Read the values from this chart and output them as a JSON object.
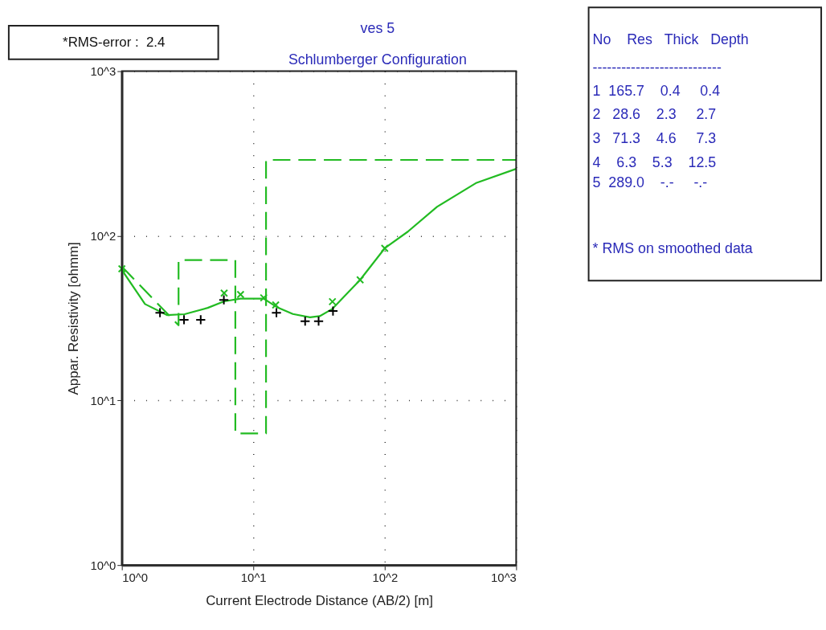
{
  "chart_data": {
    "type": "line",
    "title": "ves 5",
    "subtitle": "Schlumberger Configuration",
    "xlabel": "Current Electrode Distance (AB/2) [m]",
    "ylabel": "Appar. Resistivity [ohmm]",
    "log": "xy",
    "grid": true,
    "xlim": [
      1,
      1000
    ],
    "ylim": [
      1,
      1000
    ],
    "xticks": [
      {
        "value": 1,
        "label": "10^0"
      },
      {
        "value": 10,
        "label": "10^1"
      },
      {
        "value": 100,
        "label": "10^2"
      },
      {
        "value": 1000,
        "label": "10^3"
      }
    ],
    "yticks": [
      {
        "value": 1,
        "label": "10^0"
      },
      {
        "value": 10,
        "label": "10^1"
      },
      {
        "value": 100,
        "label": "10^2"
      },
      {
        "value": 1000,
        "label": "10^3"
      }
    ],
    "series": [
      {
        "type": "line",
        "color": "#22bb22",
        "line_style": "dashed",
        "marker": "none",
        "x": [
          1,
          2.7,
          2.7,
          7.3,
          7.3,
          12.5,
          12.5,
          1000
        ],
        "values": [
          65,
          28.6,
          71.3,
          71.3,
          6.3,
          6.3,
          289,
          289
        ]
      },
      {
        "type": "line",
        "color": "#22bb22",
        "line_style": "solid",
        "marker": "none",
        "x": [
          1,
          1.5,
          2.2,
          3,
          4.5,
          6,
          8,
          12,
          15,
          20,
          27,
          32,
          40,
          65,
          100,
          150,
          250,
          500,
          1000
        ],
        "values": [
          62,
          38.5,
          33,
          33.4,
          36.5,
          40,
          41.5,
          41.5,
          37,
          33.5,
          32,
          32.5,
          36,
          54,
          84,
          106,
          150,
          210,
          255
        ]
      },
      {
        "type": "scatter",
        "color": "#22bb22",
        "marker": "cross",
        "x": [
          1,
          6,
          8,
          12,
          14.8,
          40,
          65,
          100
        ],
        "values": [
          63,
          44.9,
          44,
          42,
          38,
          39.8,
          54,
          84
        ]
      },
      {
        "type": "scatter",
        "color": "#000000",
        "marker": "cross",
        "x": [
          1.95,
          2.97,
          3.98,
          5.97,
          15,
          24.8,
          31.4,
          40.4
        ],
        "values": [
          34.1,
          30.9,
          30.9,
          40.8,
          34.1,
          30.3,
          30.3,
          34.9
        ]
      }
    ],
    "annotations": [
      "*RMS-error :  2.4",
      "No    Res   Thick   Depth",
      "---------------------------",
      " 1  165.7    0.4     0.4",
      " 2   28.6    2.3     2.7",
      " 3   71.3    4.6     7.3",
      " 4    6.3    5.3    12.5",
      " 5  289.0    -.-     -.-",
      "* RMS on smoothed data"
    ]
  }
}
